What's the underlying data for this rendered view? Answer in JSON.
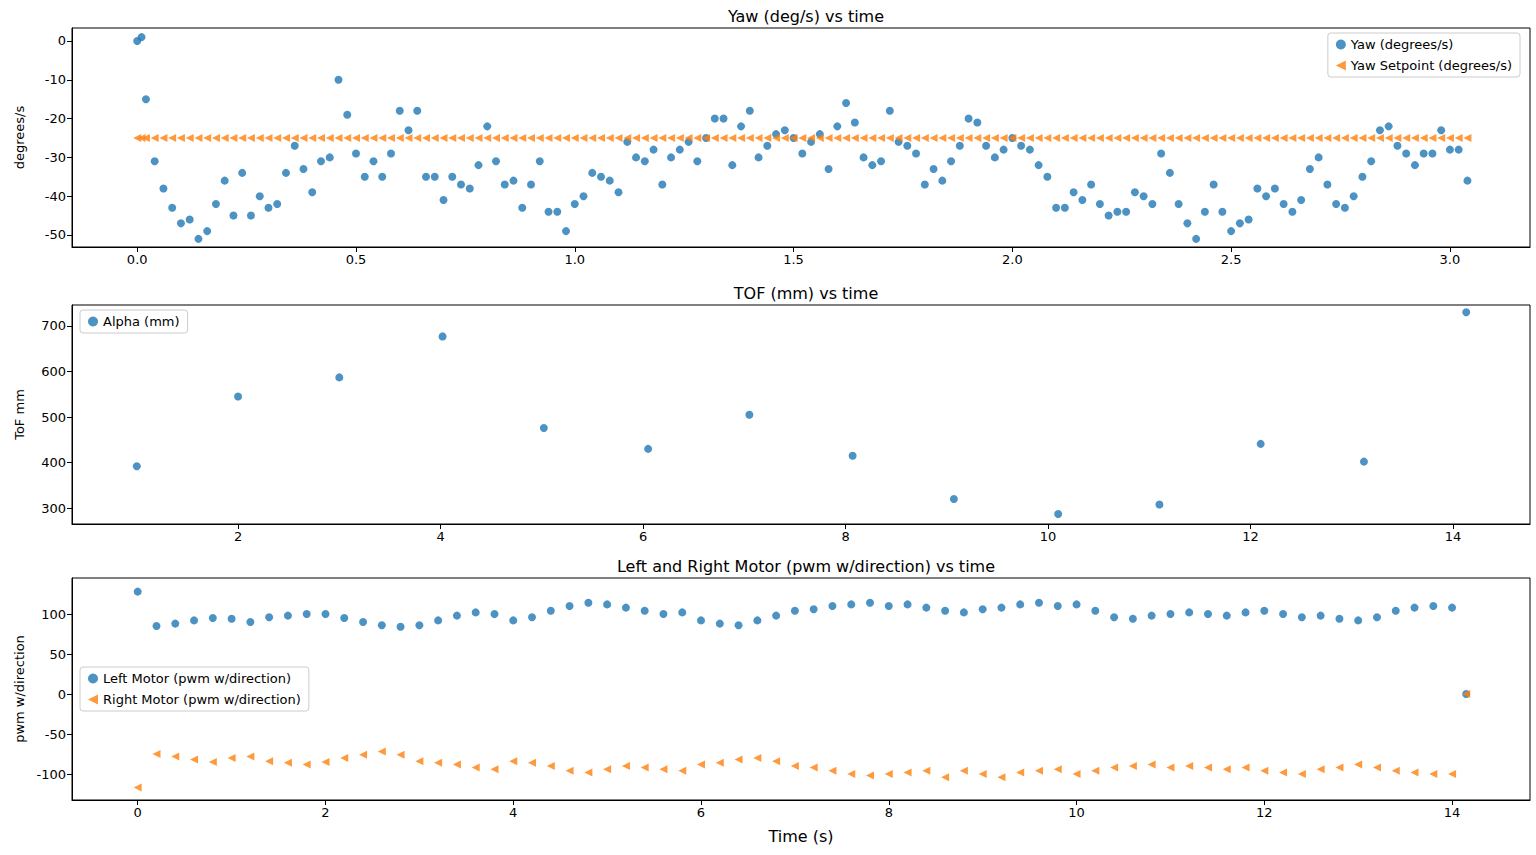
{
  "chart_data": [
    {
      "type": "scatter",
      "title": "Yaw (deg/s) vs time",
      "ylabel": "degrees/s",
      "x": [
        0,
        0.01,
        0.02,
        0.04,
        0.06,
        0.08,
        0.1,
        0.12,
        0.14,
        0.16,
        0.18,
        0.2,
        0.22,
        0.24,
        0.26,
        0.28,
        0.3,
        0.32,
        0.34,
        0.36,
        0.38,
        0.4,
        0.42,
        0.44,
        0.46,
        0.48,
        0.5,
        0.52,
        0.54,
        0.56,
        0.58,
        0.6,
        0.62,
        0.64,
        0.66,
        0.68,
        0.7,
        0.72,
        0.74,
        0.76,
        0.78,
        0.8,
        0.82,
        0.84,
        0.86,
        0.88,
        0.9,
        0.92,
        0.94,
        0.96,
        0.98,
        1.0,
        1.02,
        1.04,
        1.06,
        1.08,
        1.1,
        1.12,
        1.14,
        1.16,
        1.18,
        1.2,
        1.22,
        1.24,
        1.26,
        1.28,
        1.3,
        1.32,
        1.34,
        1.36,
        1.38,
        1.4,
        1.42,
        1.44,
        1.46,
        1.48,
        1.5,
        1.52,
        1.54,
        1.56,
        1.58,
        1.6,
        1.62,
        1.64,
        1.66,
        1.68,
        1.7,
        1.72,
        1.74,
        1.76,
        1.78,
        1.8,
        1.82,
        1.84,
        1.86,
        1.88,
        1.9,
        1.92,
        1.94,
        1.96,
        1.98,
        2.0,
        2.02,
        2.04,
        2.06,
        2.08,
        2.1,
        2.12,
        2.14,
        2.16,
        2.18,
        2.2,
        2.22,
        2.24,
        2.26,
        2.28,
        2.3,
        2.32,
        2.34,
        2.36,
        2.38,
        2.4,
        2.42,
        2.44,
        2.46,
        2.48,
        2.5,
        2.52,
        2.54,
        2.56,
        2.58,
        2.6,
        2.62,
        2.64,
        2.66,
        2.68,
        2.7,
        2.72,
        2.74,
        2.76,
        2.78,
        2.8,
        2.82,
        2.84,
        2.86,
        2.88,
        2.9,
        2.92,
        2.94,
        2.96,
        2.98,
        3.0,
        3.02,
        3.04
      ],
      "series": [
        {
          "name": "Yaw (degrees/s)",
          "color": "#1f77b4",
          "marker": "circle",
          "values": [
            0,
            1,
            -15,
            -31,
            -38,
            -43,
            -47,
            -46,
            -51,
            -49,
            -42,
            -36,
            -45,
            -34,
            -45,
            -40,
            -43,
            -42,
            -34,
            -27,
            -33,
            -39,
            -31,
            -30,
            -10,
            -19,
            -29,
            -35,
            -31,
            -35,
            -29,
            -18,
            -23,
            -18,
            -35,
            -35,
            -41,
            -35,
            -37,
            -38,
            -32,
            -22,
            -31,
            -37,
            -36,
            -43,
            -37,
            -31,
            -44,
            -44,
            -49,
            -42,
            -40,
            -34,
            -35,
            -36,
            -39,
            -26,
            -30,
            -31,
            -28,
            -37,
            -30,
            -28,
            -26,
            -31,
            -25,
            -20,
            -20,
            -32,
            -22,
            -18,
            -30,
            -27,
            -24,
            -23,
            -25,
            -29,
            -26,
            -24,
            -33,
            -22,
            -16,
            -21,
            -30,
            -32,
            -31,
            -18,
            -26,
            -27,
            -29,
            -37,
            -33,
            -36,
            -31,
            -27,
            -20,
            -21,
            -27,
            -30,
            -28,
            -25,
            -27,
            -28,
            -32,
            -35,
            -43,
            -43,
            -39,
            -41,
            -37,
            -42,
            -45,
            -44,
            -44,
            -39,
            -40,
            -42,
            -29,
            -34,
            -42,
            -47,
            -51,
            -44,
            -37,
            -44,
            -49,
            -47,
            -46,
            -38,
            -40,
            -38,
            -42,
            -44,
            -41,
            -33,
            -30,
            -37,
            -42,
            -43,
            -40,
            -35,
            -31,
            -23,
            -22,
            -27,
            -29,
            -32,
            -29,
            -29,
            -23,
            -28,
            -28,
            -36
          ]
        },
        {
          "name": "Yaw Setpoint (degrees/s)",
          "color": "#ff7f0e",
          "marker": "triangle-left",
          "values": [
            -25,
            -25,
            -25,
            -25,
            -25,
            -25,
            -25,
            -25,
            -25,
            -25,
            -25,
            -25,
            -25,
            -25,
            -25,
            -25,
            -25,
            -25,
            -25,
            -25,
            -25,
            -25,
            -25,
            -25,
            -25,
            -25,
            -25,
            -25,
            -25,
            -25,
            -25,
            -25,
            -25,
            -25,
            -25,
            -25,
            -25,
            -25,
            -25,
            -25,
            -25,
            -25,
            -25,
            -25,
            -25,
            -25,
            -25,
            -25,
            -25,
            -25,
            -25,
            -25,
            -25,
            -25,
            -25,
            -25,
            -25,
            -25,
            -25,
            -25,
            -25,
            -25,
            -25,
            -25,
            -25,
            -25,
            -25,
            -25,
            -25,
            -25,
            -25,
            -25,
            -25,
            -25,
            -25,
            -25,
            -25,
            -25,
            -25,
            -25,
            -25,
            -25,
            -25,
            -25,
            -25,
            -25,
            -25,
            -25,
            -25,
            -25,
            -25,
            -25,
            -25,
            -25,
            -25,
            -25,
            -25,
            -25,
            -25,
            -25,
            -25,
            -25,
            -25,
            -25,
            -25,
            -25,
            -25,
            -25,
            -25,
            -25,
            -25,
            -25,
            -25,
            -25,
            -25,
            -25,
            -25,
            -25,
            -25,
            -25,
            -25,
            -25,
            -25,
            -25,
            -25,
            -25,
            -25,
            -25,
            -25,
            -25,
            -25,
            -25,
            -25,
            -25,
            -25,
            -25,
            -25,
            -25,
            -25,
            -25,
            -25,
            -25,
            -25,
            -25,
            -25,
            -25,
            -25,
            -25,
            -25,
            -25,
            -25,
            -25,
            -25,
            -25
          ]
        }
      ],
      "xlim": [
        -0.149,
        3.183
      ],
      "ylim": [
        -53.1,
        3.35
      ],
      "xticks": [
        {
          "value": 0,
          "label": "0.0"
        },
        {
          "value": 0.5,
          "label": "0.5"
        },
        {
          "value": 1,
          "label": "1.0"
        },
        {
          "value": 1.5,
          "label": "1.5"
        },
        {
          "value": 2,
          "label": "2.0"
        },
        {
          "value": 2.5,
          "label": "2.5"
        },
        {
          "value": 3,
          "label": "3.0"
        }
      ],
      "yticks": [
        -50,
        -40,
        -30,
        -20,
        -10,
        0
      ],
      "grid": false,
      "legend": "upper right"
    },
    {
      "type": "scatter",
      "title": "TOF (mm) vs time",
      "ylabel": "ToF mm",
      "x": [
        1,
        2,
        3,
        4.02,
        5.02,
        6.05,
        7.05,
        8.07,
        9.07,
        10.1,
        11.1,
        12.1,
        13.12,
        14.13
      ],
      "series": [
        {
          "name": "Alpha (mm)",
          "color": "#1f77b4",
          "marker": "circle",
          "values": [
            392,
            545,
            587,
            677,
            476,
            430,
            505,
            415,
            320,
            287,
            308,
            441,
            402,
            730
          ]
        }
      ],
      "xlim": [
        0.36,
        14.76
      ],
      "ylim": [
        265,
        746
      ],
      "xticks": [
        2,
        4,
        6,
        8,
        10,
        12,
        14
      ],
      "yticks": [
        300,
        400,
        500,
        600,
        700
      ],
      "grid": false,
      "legend": "upper left"
    },
    {
      "type": "scatter",
      "title": "Left and Right Motor (pwm w/direction) vs time",
      "xlabel": "Time (s)",
      "ylabel": "pwm w/direction",
      "x": [
        0,
        0.2,
        0.4,
        0.6,
        0.8,
        1.0,
        1.2,
        1.4,
        1.6,
        1.8,
        2.0,
        2.2,
        2.4,
        2.6,
        2.8,
        3.0,
        3.2,
        3.4,
        3.6,
        3.8,
        4.0,
        4.2,
        4.4,
        4.6,
        4.8,
        5.0,
        5.2,
        5.4,
        5.6,
        5.8,
        6.0,
        6.2,
        6.4,
        6.6,
        6.8,
        7.0,
        7.2,
        7.4,
        7.6,
        7.8,
        8.0,
        8.2,
        8.4,
        8.6,
        8.8,
        9.0,
        9.2,
        9.4,
        9.6,
        9.8,
        10.0,
        10.2,
        10.4,
        10.6,
        10.8,
        11.0,
        11.2,
        11.4,
        11.6,
        11.8,
        12.0,
        12.2,
        12.4,
        12.6,
        12.8,
        13.0,
        13.2,
        13.4,
        13.6,
        13.8,
        14.0,
        14.15
      ],
      "series": [
        {
          "name": "Left Motor (pwm w/direction)",
          "color": "#1f77b4",
          "marker": "circle",
          "values": [
            128,
            85,
            88,
            92,
            95,
            94,
            90,
            96,
            98,
            100,
            100,
            95,
            90,
            86,
            84,
            86,
            92,
            98,
            102,
            100,
            92,
            96,
            104,
            110,
            114,
            112,
            108,
            104,
            100,
            102,
            92,
            88,
            86,
            92,
            98,
            104,
            106,
            110,
            112,
            114,
            110,
            112,
            108,
            104,
            102,
            106,
            108,
            112,
            114,
            110,
            112,
            104,
            96,
            94,
            98,
            100,
            102,
            100,
            98,
            102,
            104,
            100,
            96,
            98,
            94,
            92,
            96,
            104,
            108,
            110,
            108,
            0
          ]
        },
        {
          "name": "Right Motor (pwm w/direction)",
          "color": "#ff7f0e",
          "marker": "triangle-left",
          "values": [
            -117,
            -75,
            -78,
            -82,
            -85,
            -80,
            -78,
            -84,
            -86,
            -88,
            -85,
            -80,
            -76,
            -72,
            -76,
            -84,
            -86,
            -88,
            -92,
            -94,
            -84,
            -86,
            -90,
            -96,
            -98,
            -94,
            -90,
            -92,
            -94,
            -96,
            -88,
            -86,
            -82,
            -80,
            -84,
            -90,
            -92,
            -96,
            -100,
            -102,
            -100,
            -98,
            -96,
            -104,
            -96,
            -100,
            -104,
            -98,
            -96,
            -94,
            -100,
            -96,
            -92,
            -90,
            -88,
            -92,
            -90,
            -92,
            -94,
            -92,
            -96,
            -98,
            -100,
            -94,
            -92,
            -88,
            -92,
            -96,
            -98,
            -100,
            -100,
            0
          ]
        }
      ],
      "xlim": [
        -0.7,
        14.83
      ],
      "ylim": [
        -132.5,
        145
      ],
      "xticks": [
        0,
        2,
        4,
        6,
        8,
        10,
        12,
        14
      ],
      "yticks": [
        -100,
        -50,
        0,
        50,
        100
      ],
      "grid": false,
      "legend": "center left"
    }
  ]
}
